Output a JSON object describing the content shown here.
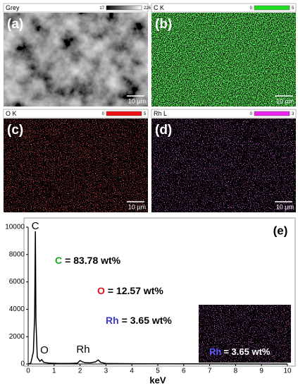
{
  "panels": [
    {
      "label": "(a)",
      "channel": "Grey",
      "scale_min": "17",
      "scale_max": "226",
      "scale_bar": "10 µm"
    },
    {
      "label": "(b)",
      "channel": "C K",
      "scale_min": "0",
      "scale_max": "5",
      "scale_bar": "10 µm"
    },
    {
      "label": "(c)",
      "channel": "O K",
      "scale_min": "0",
      "scale_max": "5",
      "scale_bar": "10 µm"
    },
    {
      "label": "(d)",
      "channel": "Rh L",
      "scale_min": "0",
      "scale_max": "3",
      "scale_bar": "10 µm"
    }
  ],
  "chart_data": {
    "type": "line",
    "panel_label": "(e)",
    "xlabel": "keV",
    "x": [
      0,
      0.1,
      0.2,
      0.25,
      0.277,
      0.3,
      0.35,
      0.45,
      0.525,
      0.6,
      0.8,
      1.2,
      1.6,
      1.9,
      2.0,
      2.1,
      2.2,
      2.4,
      2.6,
      2.7,
      2.8,
      3.0,
      4.0,
      6.0,
      8.0,
      10.0
    ],
    "values": [
      0,
      60,
      900,
      3500,
      9700,
      3200,
      500,
      200,
      320,
      120,
      60,
      40,
      40,
      60,
      250,
      150,
      100,
      80,
      160,
      300,
      120,
      40,
      20,
      10,
      5,
      0
    ],
    "color": "#000000",
    "xlim": [
      0,
      10
    ],
    "xticks": [
      0,
      1,
      2,
      3,
      4,
      5,
      6,
      7,
      8,
      9,
      10
    ],
    "ylim": [
      0,
      10000
    ],
    "yticks": [
      0,
      2000,
      4000,
      6000,
      8000,
      10000
    ],
    "peak_labels": [
      "C",
      "O",
      "Rh"
    ],
    "annotations": [
      {
        "element": "C",
        "text": "= 83.78 wt%",
        "color": "#1aa81a"
      },
      {
        "element": "O",
        "text": "= 12.57 wt%",
        "color": "#e01010"
      },
      {
        "element": "Rh",
        "text": "= 3.65 wt%",
        "color": "#3a3ad0"
      }
    ],
    "inset": {
      "element": "Rh",
      "text": "= 3.65 wt%"
    }
  }
}
